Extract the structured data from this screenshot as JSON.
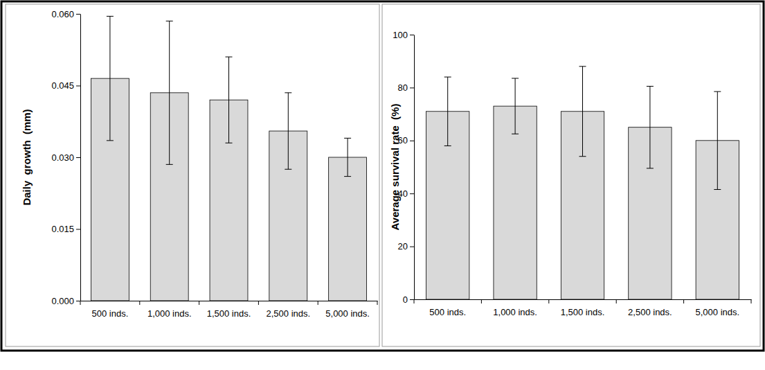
{
  "chart_data": [
    {
      "type": "bar",
      "y_label": "Daily  growth  (mm)",
      "categories": [
        "500 inds.",
        "1,000 inds.",
        "1,500 inds.",
        "2,500 inds.",
        "5,000 inds."
      ],
      "values": [
        0.0465,
        0.0435,
        0.042,
        0.0355,
        0.03
      ],
      "errors": [
        0.013,
        0.015,
        0.009,
        0.008,
        0.004
      ],
      "color": "#d9d9d9",
      "ylim": [
        0,
        0.06
      ],
      "yticks": [
        {
          "value": 0,
          "label": "0.000"
        },
        {
          "value": 0.015,
          "label": "0.015"
        },
        {
          "value": 0.03,
          "label": "0.030"
        },
        {
          "value": 0.045,
          "label": "0.045"
        },
        {
          "value": 0.06,
          "label": "0.060"
        }
      ],
      "grid": false
    },
    {
      "type": "bar",
      "y_label": "Average survival rate  (%)",
      "categories": [
        "500 inds.",
        "1,000 inds.",
        "1,500 inds.",
        "2,500 inds.",
        "5,000 inds."
      ],
      "values": [
        71,
        73,
        71,
        65,
        60
      ],
      "errors": [
        13,
        10.5,
        17,
        15.5,
        18.5
      ],
      "color": "#d9d9d9",
      "ylim": [
        0,
        100
      ],
      "yticks": [
        0,
        20,
        40,
        60,
        80,
        100
      ],
      "grid": false
    }
  ]
}
